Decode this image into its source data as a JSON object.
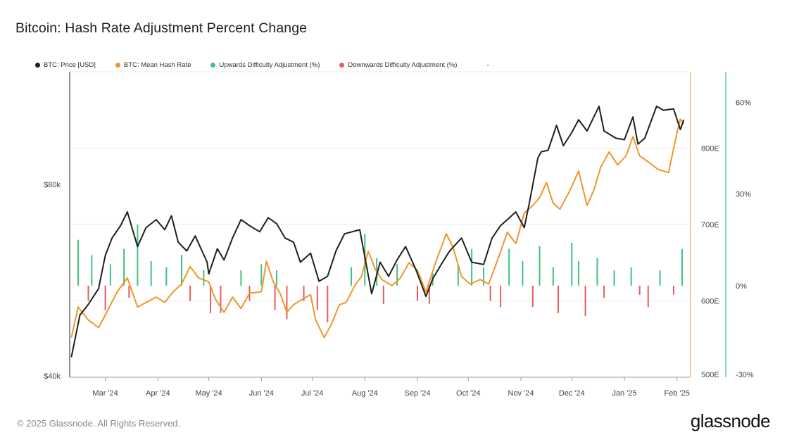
{
  "title": "Bitcoin: Hash Rate Adjustment Percent Change",
  "footer": {
    "copyright": "© 2025 Glassnode. All Rights Reserved.",
    "brand": "glassnode"
  },
  "colors": {
    "price": "#1f1f1f",
    "hash": "#f0962b",
    "up": "#3fc37e",
    "down": "#ea5a62",
    "grid": "#ebebeb",
    "axis_right_hash": "#f0b46a",
    "axis_right_pct": "#49bca8"
  },
  "chart_data": {
    "type": "line",
    "title": "Bitcoin: Hash Rate Adjustment Percent Change",
    "legend_position": "top-left",
    "grid": true,
    "legend": [
      {
        "label": "BTC: Price [USD]",
        "color": "#1f1f1f"
      },
      {
        "label": "BTC: Mean Hash Rate",
        "color": "#f0962b"
      },
      {
        "label": "Upwards Difficulty Adjustment (%)",
        "color": "#3fc37e"
      },
      {
        "label": "Downwards Difficulty Adjustment (%)",
        "color": "#ea5a62"
      }
    ],
    "legend_extra": "-",
    "x_ticks": [
      "Mar '24",
      "Apr '24",
      "May '24",
      "Jun '24",
      "Jul '24",
      "Aug '24",
      "Sep '24",
      "Oct '24",
      "Nov '24",
      "Dec '24",
      "Jan '25",
      "Feb '25"
    ],
    "x_range": [
      "2024-02-09",
      "2025-02-09"
    ],
    "axes": {
      "price": {
        "ticks": [
          "$40k",
          "$80k"
        ],
        "scale": "log",
        "range": [
          40000,
          120000
        ]
      },
      "hash": {
        "ticks": [
          "500E",
          "600E",
          "700E",
          "800E"
        ],
        "range": [
          500,
          900
        ]
      },
      "pct": {
        "ticks": [
          "-30%",
          "0%",
          "30%",
          "60%"
        ],
        "range": [
          -30,
          70
        ]
      }
    },
    "series": [
      {
        "name": "BTC: Price [USD]",
        "axis": "price",
        "points": [
          [
            "2024-02-10",
            43000
          ],
          [
            "2024-02-15",
            50000
          ],
          [
            "2024-02-20",
            52000
          ],
          [
            "2024-02-26",
            55000
          ],
          [
            "2024-03-01",
            62000
          ],
          [
            "2024-03-05",
            66000
          ],
          [
            "2024-03-10",
            69000
          ],
          [
            "2024-03-14",
            72500
          ],
          [
            "2024-03-20",
            64000
          ],
          [
            "2024-03-25",
            68500
          ],
          [
            "2024-03-31",
            70500
          ],
          [
            "2024-04-05",
            68000
          ],
          [
            "2024-04-09",
            71500
          ],
          [
            "2024-04-13",
            65000
          ],
          [
            "2024-04-18",
            63000
          ],
          [
            "2024-04-23",
            66500
          ],
          [
            "2024-04-30",
            60500
          ],
          [
            "2024-05-01",
            58000
          ],
          [
            "2024-05-06",
            63500
          ],
          [
            "2024-05-10",
            61000
          ],
          [
            "2024-05-15",
            66000
          ],
          [
            "2024-05-20",
            70500
          ],
          [
            "2024-05-25",
            69000
          ],
          [
            "2024-05-31",
            67500
          ],
          [
            "2024-06-05",
            71000
          ],
          [
            "2024-06-10",
            69500
          ],
          [
            "2024-06-15",
            66000
          ],
          [
            "2024-06-20",
            65000
          ],
          [
            "2024-06-24",
            60500
          ],
          [
            "2024-06-30",
            62500
          ],
          [
            "2024-07-05",
            56500
          ],
          [
            "2024-07-10",
            57500
          ],
          [
            "2024-07-15",
            63000
          ],
          [
            "2024-07-20",
            67000
          ],
          [
            "2024-07-29",
            68000
          ],
          [
            "2024-08-05",
            54000
          ],
          [
            "2024-08-10",
            60500
          ],
          [
            "2024-08-15",
            57500
          ],
          [
            "2024-08-20",
            61000
          ],
          [
            "2024-08-25",
            64000
          ],
          [
            "2024-08-31",
            59000
          ],
          [
            "2024-09-06",
            53500
          ],
          [
            "2024-09-10",
            57000
          ],
          [
            "2024-09-15",
            60000
          ],
          [
            "2024-09-20",
            63000
          ],
          [
            "2024-09-27",
            66000
          ],
          [
            "2024-10-03",
            60500
          ],
          [
            "2024-10-10",
            60000
          ],
          [
            "2024-10-15",
            66000
          ],
          [
            "2024-10-20",
            69000
          ],
          [
            "2024-10-29",
            72500
          ],
          [
            "2024-11-03",
            68500
          ],
          [
            "2024-11-06",
            75000
          ],
          [
            "2024-11-11",
            88000
          ],
          [
            "2024-11-13",
            90000
          ],
          [
            "2024-11-17",
            90500
          ],
          [
            "2024-11-22",
            99000
          ],
          [
            "2024-11-26",
            92000
          ],
          [
            "2024-12-01",
            96500
          ],
          [
            "2024-12-05",
            101000
          ],
          [
            "2024-12-10",
            97000
          ],
          [
            "2024-12-17",
            106000
          ],
          [
            "2024-12-20",
            97000
          ],
          [
            "2024-12-27",
            94500
          ],
          [
            "2025-01-01",
            94000
          ],
          [
            "2025-01-06",
            102000
          ],
          [
            "2025-01-09",
            92500
          ],
          [
            "2025-01-13",
            94500
          ],
          [
            "2025-01-20",
            106000
          ],
          [
            "2025-01-24",
            104500
          ],
          [
            "2025-01-30",
            105000
          ],
          [
            "2025-02-03",
            97500
          ],
          [
            "2025-02-05",
            101000
          ]
        ]
      },
      {
        "name": "BTC: Mean Hash Rate",
        "axis": "hash",
        "points": [
          [
            "2024-02-10",
            552
          ],
          [
            "2024-02-14",
            592
          ],
          [
            "2024-02-20",
            575
          ],
          [
            "2024-02-26",
            565
          ],
          [
            "2024-03-03",
            590
          ],
          [
            "2024-03-08",
            612
          ],
          [
            "2024-03-14",
            630
          ],
          [
            "2024-03-20",
            592
          ],
          [
            "2024-03-25",
            598
          ],
          [
            "2024-03-31",
            605
          ],
          [
            "2024-04-05",
            598
          ],
          [
            "2024-04-10",
            612
          ],
          [
            "2024-04-15",
            622
          ],
          [
            "2024-04-20",
            645
          ],
          [
            "2024-04-25",
            630
          ],
          [
            "2024-05-01",
            625
          ],
          [
            "2024-05-05",
            602
          ],
          [
            "2024-05-10",
            585
          ],
          [
            "2024-05-15",
            605
          ],
          [
            "2024-05-20",
            590
          ],
          [
            "2024-05-25",
            610
          ],
          [
            "2024-06-01",
            612
          ],
          [
            "2024-06-04",
            652
          ],
          [
            "2024-06-08",
            625
          ],
          [
            "2024-06-12",
            610
          ],
          [
            "2024-06-16",
            585
          ],
          [
            "2024-06-20",
            595
          ],
          [
            "2024-06-25",
            602
          ],
          [
            "2024-06-30",
            608
          ],
          [
            "2024-07-03",
            575
          ],
          [
            "2024-07-08",
            552
          ],
          [
            "2024-07-12",
            568
          ],
          [
            "2024-07-17",
            595
          ],
          [
            "2024-07-21",
            598
          ],
          [
            "2024-07-26",
            620
          ],
          [
            "2024-07-30",
            632
          ],
          [
            "2024-08-03",
            665
          ],
          [
            "2024-08-07",
            642
          ],
          [
            "2024-08-11",
            628
          ],
          [
            "2024-08-17",
            620
          ],
          [
            "2024-08-22",
            630
          ],
          [
            "2024-08-27",
            650
          ],
          [
            "2024-09-01",
            640
          ],
          [
            "2024-09-06",
            612
          ],
          [
            "2024-09-12",
            652
          ],
          [
            "2024-09-18",
            688
          ],
          [
            "2024-09-22",
            670
          ],
          [
            "2024-09-27",
            632
          ],
          [
            "2024-10-02",
            622
          ],
          [
            "2024-10-08",
            628
          ],
          [
            "2024-10-13",
            622
          ],
          [
            "2024-10-19",
            658
          ],
          [
            "2024-10-24",
            690
          ],
          [
            "2024-10-29",
            675
          ],
          [
            "2024-11-03",
            715
          ],
          [
            "2024-11-08",
            725
          ],
          [
            "2024-11-12",
            735
          ],
          [
            "2024-11-16",
            755
          ],
          [
            "2024-11-20",
            728
          ],
          [
            "2024-11-24",
            720
          ],
          [
            "2024-11-30",
            745
          ],
          [
            "2024-12-05",
            770
          ],
          [
            "2024-12-10",
            725
          ],
          [
            "2024-12-14",
            745
          ],
          [
            "2024-12-18",
            775
          ],
          [
            "2024-12-23",
            795
          ],
          [
            "2024-12-28",
            778
          ],
          [
            "2025-01-02",
            790
          ],
          [
            "2025-01-06",
            815
          ],
          [
            "2025-01-10",
            790
          ],
          [
            "2025-01-15",
            782
          ],
          [
            "2025-01-21",
            772
          ],
          [
            "2025-01-27",
            768
          ],
          [
            "2025-02-01",
            820
          ],
          [
            "2025-02-03",
            838
          ],
          [
            "2025-02-05",
            832
          ]
        ]
      }
    ],
    "adjustments": {
      "up_pct": [
        [
          "2024-02-14",
          15
        ],
        [
          "2024-02-22",
          10
        ],
        [
          "2024-03-04",
          7
        ],
        [
          "2024-03-12",
          12
        ],
        [
          "2024-03-20",
          20
        ],
        [
          "2024-03-28",
          8
        ],
        [
          "2024-04-06",
          6
        ],
        [
          "2024-04-15",
          10
        ],
        [
          "2024-04-28",
          5
        ],
        [
          "2024-05-20",
          5
        ],
        [
          "2024-06-01",
          7
        ],
        [
          "2024-06-10",
          5
        ],
        [
          "2024-07-24",
          6
        ],
        [
          "2024-08-01",
          17
        ],
        [
          "2024-08-08",
          9
        ],
        [
          "2024-08-20",
          7
        ],
        [
          "2024-09-10",
          4
        ],
        [
          "2024-09-25",
          7
        ],
        [
          "2024-10-03",
          12
        ],
        [
          "2024-10-10",
          6
        ],
        [
          "2024-10-25",
          12
        ],
        [
          "2024-11-02",
          8
        ],
        [
          "2024-11-12",
          13
        ],
        [
          "2024-11-20",
          6
        ],
        [
          "2024-12-01",
          14
        ],
        [
          "2024-12-05",
          8
        ],
        [
          "2024-12-16",
          9
        ],
        [
          "2024-12-26",
          5
        ],
        [
          "2025-01-05",
          6
        ],
        [
          "2025-01-22",
          5
        ],
        [
          "2025-02-04",
          12
        ]
      ],
      "down_pct": [
        [
          "2024-02-20",
          -5
        ],
        [
          "2024-03-01",
          -8
        ],
        [
          "2024-03-15",
          -4
        ],
        [
          "2024-04-20",
          -5
        ],
        [
          "2024-05-02",
          -9
        ],
        [
          "2024-05-08",
          -9
        ],
        [
          "2024-05-25",
          -5
        ],
        [
          "2024-06-09",
          -8
        ],
        [
          "2024-06-16",
          -11
        ],
        [
          "2024-06-26",
          -5
        ],
        [
          "2024-07-04",
          -8
        ],
        [
          "2024-07-10",
          -12
        ],
        [
          "2024-08-12",
          -6
        ],
        [
          "2024-09-01",
          -5
        ],
        [
          "2024-09-08",
          -6
        ],
        [
          "2024-10-14",
          -5
        ],
        [
          "2024-10-20",
          -7
        ],
        [
          "2024-11-08",
          -7
        ],
        [
          "2024-11-23",
          -9
        ],
        [
          "2024-12-09",
          -10
        ],
        [
          "2024-12-20",
          -4
        ],
        [
          "2025-01-10",
          -3
        ],
        [
          "2025-01-15",
          -7
        ],
        [
          "2025-01-30",
          -3
        ]
      ]
    }
  }
}
